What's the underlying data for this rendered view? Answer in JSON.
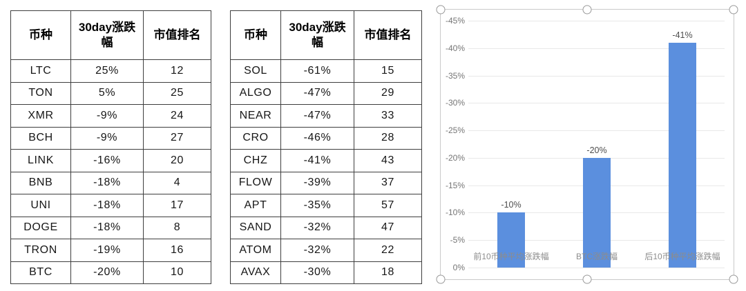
{
  "page": {
    "background": "#ffffff"
  },
  "tables": [
    {
      "name": "top10-coins-table",
      "headers": [
        "币种",
        "30day涨跌幅",
        "市值排名"
      ],
      "rows": [
        [
          "LTC",
          "25%",
          "12"
        ],
        [
          "TON",
          "5%",
          "25"
        ],
        [
          "XMR",
          "-9%",
          "24"
        ],
        [
          "BCH",
          "-9%",
          "27"
        ],
        [
          "LINK",
          "-16%",
          "20"
        ],
        [
          "BNB",
          "-18%",
          "4"
        ],
        [
          "UNI",
          "-18%",
          "17"
        ],
        [
          "DOGE",
          "-18%",
          "8"
        ],
        [
          "TRON",
          "-19%",
          "16"
        ],
        [
          "BTC",
          "-20%",
          "10"
        ]
      ]
    },
    {
      "name": "bottom10-coins-table",
      "headers": [
        "币种",
        "30day涨跌幅",
        "市值排名"
      ],
      "rows": [
        [
          "SOL",
          "-61%",
          "15"
        ],
        [
          "ALGO",
          "-47%",
          "29"
        ],
        [
          "NEAR",
          "-47%",
          "33"
        ],
        [
          "CRO",
          "-46%",
          "28"
        ],
        [
          "CHZ",
          "-41%",
          "43"
        ],
        [
          "FLOW",
          "-39%",
          "37"
        ],
        [
          "APT",
          "-35%",
          "57"
        ],
        [
          "SAND",
          "-32%",
          "47"
        ],
        [
          "ATOM",
          "-32%",
          "22"
        ],
        [
          "AVAX",
          "-30%",
          "18"
        ]
      ]
    }
  ],
  "chart_data": {
    "type": "bar",
    "title": "",
    "xlabel": "",
    "ylabel": "",
    "categories": [
      "前10币种平均涨跌幅",
      "BTC涨跌幅",
      "后10币种平均涨跌幅"
    ],
    "values": [
      -10,
      -20,
      -41
    ],
    "data_labels": [
      "-10%",
      "-20%",
      "-41%"
    ],
    "y_ticks": [
      "-45%",
      "-40%",
      "-35%",
      "-30%",
      "-25%",
      "-20%",
      "-15%",
      "-10%",
      "-5%",
      "0%"
    ],
    "ylim": [
      0,
      -45
    ],
    "axis_reversed": true,
    "grid": true,
    "legend": "none",
    "selected": true,
    "selection_handles": [
      "top-left",
      "top-center",
      "top-right",
      "bottom-left",
      "bottom-center",
      "bottom-right"
    ],
    "colors": {
      "bar": "#5b8fde",
      "gridline": "#e8e8e8",
      "tick_text": "#757575",
      "category_text": "#8c8c8c",
      "data_label_text": "#4d4d4d",
      "chart_border": "#c9c9c9",
      "handle_stroke": "#999999",
      "table_border": "#3d3d3d"
    }
  }
}
